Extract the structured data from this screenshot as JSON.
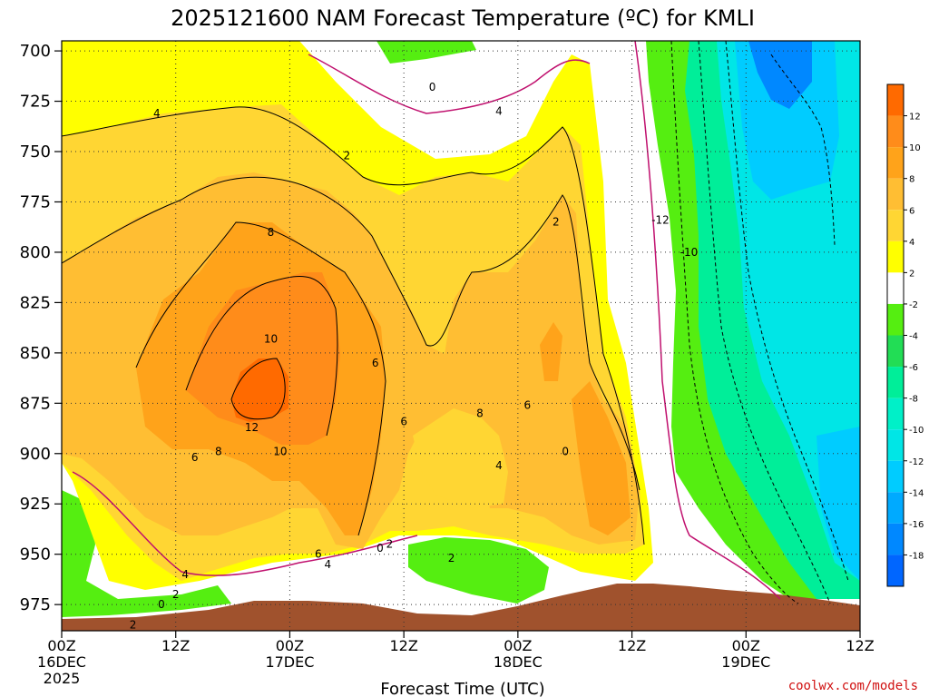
{
  "chart_data": {
    "type": "heatmap",
    "title": "2025121600 NAM Forecast Temperature (ºC) for KMLI",
    "xlabel": "Forecast Time (UTC)",
    "ylabel": "",
    "credit": "coolwx.com/models",
    "y_axis": {
      "ticks": [
        700,
        725,
        750,
        775,
        800,
        825,
        850,
        875,
        900,
        925,
        950,
        975
      ],
      "ylim": [
        988,
        695
      ],
      "inverted": true
    },
    "x_axis": {
      "ticks": [
        {
          "hour": 0,
          "time": "00Z",
          "date": "16DEC",
          "year": "2025"
        },
        {
          "hour": 12,
          "time": "12Z",
          "date": "",
          "year": ""
        },
        {
          "hour": 24,
          "time": "00Z",
          "date": "17DEC",
          "year": ""
        },
        {
          "hour": 36,
          "time": "12Z",
          "date": "",
          "year": ""
        },
        {
          "hour": 48,
          "time": "00Z",
          "date": "18DEC",
          "year": ""
        },
        {
          "hour": 60,
          "time": "12Z",
          "date": "",
          "year": ""
        },
        {
          "hour": 72,
          "time": "00Z",
          "date": "19DEC",
          "year": ""
        },
        {
          "hour": 84,
          "time": "12Z",
          "date": "",
          "year": ""
        }
      ],
      "xlim": [
        0,
        84
      ]
    },
    "grid": true,
    "colorbar": {
      "placement": "right",
      "bins": [
        {
          "from": 12,
          "to": 14,
          "color": "#ff6a00"
        },
        {
          "from": 10,
          "to": 12,
          "color": "#ff8c1a"
        },
        {
          "from": 8,
          "to": 10,
          "color": "#ffa31a"
        },
        {
          "from": 6,
          "to": 8,
          "color": "#ffbe33"
        },
        {
          "from": 4,
          "to": 6,
          "color": "#ffd633"
        },
        {
          "from": 2,
          "to": 4,
          "color": "#ffff00"
        },
        {
          "from": -2,
          "to": 2,
          "color": "#ffffff"
        },
        {
          "from": -4,
          "to": -2,
          "color": "#55ee11"
        },
        {
          "from": -6,
          "to": -4,
          "color": "#22dd55"
        },
        {
          "from": -8,
          "to": -6,
          "color": "#00ee99"
        },
        {
          "from": -10,
          "to": -8,
          "color": "#00f0c8"
        },
        {
          "from": -12,
          "to": -10,
          "color": "#00e6e6"
        },
        {
          "from": -14,
          "to": -12,
          "color": "#00ccff"
        },
        {
          "from": -16,
          "to": -14,
          "color": "#00aaff"
        },
        {
          "from": -18,
          "to": -16,
          "color": "#0088ff"
        },
        {
          "from": -20,
          "to": -18,
          "color": "#0066ff"
        }
      ],
      "labels": [
        12,
        10,
        8,
        6,
        4,
        2,
        -2,
        -4,
        -6,
        -8,
        -10,
        -12,
        -14,
        -16,
        -18
      ]
    },
    "contour_labels": [
      {
        "text": "4",
        "hour": 10,
        "p": 731
      },
      {
        "text": "2",
        "hour": 30,
        "p": 752
      },
      {
        "text": "0",
        "hour": 39,
        "p": 718
      },
      {
        "text": "4",
        "hour": 46,
        "p": 730
      },
      {
        "text": "8",
        "hour": 22,
        "p": 790
      },
      {
        "text": "10",
        "hour": 22,
        "p": 843
      },
      {
        "text": "12",
        "hour": 20,
        "p": 887
      },
      {
        "text": "6",
        "hour": 14,
        "p": 902
      },
      {
        "text": "8",
        "hour": 16.5,
        "p": 899
      },
      {
        "text": "10",
        "hour": 23,
        "p": 899
      },
      {
        "text": "6",
        "hour": 33,
        "p": 855
      },
      {
        "text": "6",
        "hour": 36,
        "p": 884
      },
      {
        "text": "8",
        "hour": 44,
        "p": 880
      },
      {
        "text": "6",
        "hour": 49,
        "p": 876
      },
      {
        "text": "4",
        "hour": 46,
        "p": 906
      },
      {
        "text": "0",
        "hour": 53,
        "p": 899
      },
      {
        "text": "2",
        "hour": 52,
        "p": 785
      },
      {
        "text": "-12",
        "hour": 63,
        "p": 784
      },
      {
        "text": "-10",
        "hour": 66,
        "p": 800
      },
      {
        "text": "6",
        "hour": 27,
        "p": 950
      },
      {
        "text": "4",
        "hour": 28,
        "p": 955
      },
      {
        "text": "0",
        "hour": 33.5,
        "p": 947
      },
      {
        "text": "2",
        "hour": 34.5,
        "p": 945
      },
      {
        "text": "2",
        "hour": 41,
        "p": 952
      },
      {
        "text": "4",
        "hour": 13,
        "p": 960
      },
      {
        "text": "2",
        "hour": 12,
        "p": 970
      },
      {
        "text": "0",
        "hour": 10.5,
        "p": 975
      },
      {
        "text": "2",
        "hour": 7.5,
        "p": 985
      }
    ]
  }
}
